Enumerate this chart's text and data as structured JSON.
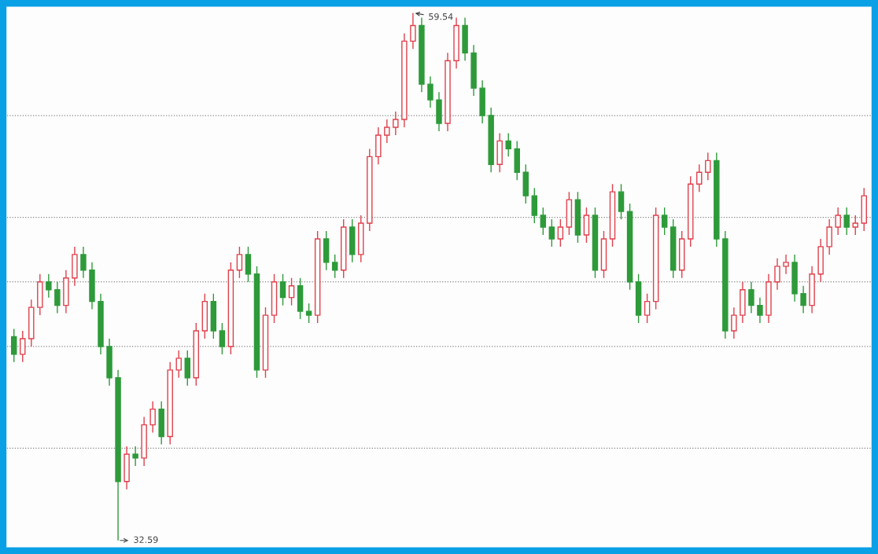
{
  "chart_data": {
    "type": "candlestick",
    "categories": [
      null,
      null,
      null,
      null,
      null,
      null,
      null,
      null,
      null,
      null,
      null,
      null,
      null,
      null,
      null,
      null,
      null,
      null,
      null,
      null,
      null,
      null,
      null,
      null,
      null,
      null,
      null,
      null,
      null,
      null,
      null,
      null,
      null,
      null,
      null,
      null,
      null,
      null,
      null,
      null,
      null,
      null,
      null,
      null,
      null,
      null,
      null,
      null,
      null,
      null,
      null,
      null,
      null,
      null,
      null,
      null,
      null,
      null,
      null,
      null,
      null,
      null,
      null,
      null,
      null,
      null,
      null,
      null,
      null,
      null,
      null,
      null,
      null,
      null,
      null,
      null,
      null,
      null,
      null,
      null,
      null,
      null,
      null,
      null,
      null,
      null,
      null,
      null,
      null,
      null,
      null,
      null,
      null,
      null,
      null,
      null,
      null,
      null,
      null
    ],
    "ohlc": [
      [
        43.0,
        43.4,
        41.7,
        42.1
      ],
      [
        42.1,
        43.3,
        41.7,
        42.9
      ],
      [
        42.9,
        44.9,
        42.5,
        44.5
      ],
      [
        44.5,
        46.2,
        44.1,
        45.8
      ],
      [
        45.8,
        46.2,
        45.0,
        45.4
      ],
      [
        45.4,
        45.8,
        44.2,
        44.6
      ],
      [
        44.6,
        46.4,
        44.2,
        46.0
      ],
      [
        46.0,
        47.6,
        45.6,
        47.2
      ],
      [
        47.2,
        47.6,
        46.0,
        46.4
      ],
      [
        46.4,
        46.8,
        44.4,
        44.8
      ],
      [
        44.8,
        45.2,
        42.1,
        42.5
      ],
      [
        42.5,
        42.9,
        40.5,
        40.9
      ],
      [
        40.9,
        41.3,
        32.59,
        35.6
      ],
      [
        35.6,
        37.4,
        35.2,
        37.0
      ],
      [
        37.0,
        37.4,
        36.4,
        36.8
      ],
      [
        36.8,
        38.9,
        36.4,
        38.5
      ],
      [
        38.5,
        39.7,
        38.1,
        39.3
      ],
      [
        39.3,
        39.7,
        37.5,
        37.9
      ],
      [
        37.9,
        41.7,
        37.5,
        41.3
      ],
      [
        41.3,
        42.3,
        40.9,
        41.9
      ],
      [
        41.9,
        42.3,
        40.5,
        40.9
      ],
      [
        40.9,
        43.7,
        40.5,
        43.3
      ],
      [
        43.3,
        45.2,
        42.9,
        44.8
      ],
      [
        44.8,
        45.2,
        42.9,
        43.3
      ],
      [
        43.3,
        43.7,
        42.1,
        42.5
      ],
      [
        42.5,
        46.8,
        42.1,
        46.4
      ],
      [
        46.4,
        47.6,
        46.0,
        47.2
      ],
      [
        47.2,
        47.6,
        45.8,
        46.2
      ],
      [
        46.2,
        46.6,
        40.9,
        41.3
      ],
      [
        41.3,
        44.5,
        40.9,
        44.1
      ],
      [
        44.1,
        46.2,
        43.7,
        45.8
      ],
      [
        45.8,
        46.2,
        44.6,
        45.0
      ],
      [
        45.0,
        46.0,
        44.6,
        45.6
      ],
      [
        45.6,
        46.0,
        43.9,
        44.3
      ],
      [
        44.3,
        44.7,
        43.7,
        44.1
      ],
      [
        44.1,
        48.4,
        43.7,
        48.0
      ],
      [
        48.0,
        48.4,
        46.4,
        46.8
      ],
      [
        46.8,
        47.2,
        46.0,
        46.4
      ],
      [
        46.4,
        49.0,
        46.0,
        48.6
      ],
      [
        48.6,
        49.0,
        46.8,
        47.2
      ],
      [
        47.2,
        49.2,
        46.8,
        48.8
      ],
      [
        48.8,
        52.6,
        48.4,
        52.2
      ],
      [
        52.2,
        53.7,
        51.8,
        53.3
      ],
      [
        53.3,
        54.1,
        52.9,
        53.7
      ],
      [
        53.7,
        54.5,
        53.3,
        54.1
      ],
      [
        54.1,
        58.5,
        53.7,
        58.1
      ],
      [
        58.1,
        59.54,
        57.7,
        58.9
      ],
      [
        58.9,
        59.3,
        55.5,
        55.9
      ],
      [
        55.9,
        56.3,
        54.7,
        55.1
      ],
      [
        55.1,
        55.5,
        53.5,
        53.9
      ],
      [
        53.9,
        57.5,
        53.5,
        57.1
      ],
      [
        57.1,
        59.3,
        56.7,
        58.9
      ],
      [
        58.9,
        59.3,
        57.1,
        57.5
      ],
      [
        57.5,
        57.9,
        55.3,
        55.7
      ],
      [
        55.7,
        56.1,
        53.9,
        54.3
      ],
      [
        54.3,
        54.7,
        51.4,
        51.8
      ],
      [
        51.8,
        53.4,
        51.4,
        53.0
      ],
      [
        53.0,
        53.4,
        52.2,
        52.6
      ],
      [
        52.6,
        53.0,
        51.0,
        51.4
      ],
      [
        51.4,
        51.8,
        49.8,
        50.2
      ],
      [
        50.2,
        50.6,
        48.8,
        49.2
      ],
      [
        49.2,
        49.6,
        48.2,
        48.6
      ],
      [
        48.6,
        49.0,
        47.6,
        48.0
      ],
      [
        48.0,
        49.0,
        47.6,
        48.6
      ],
      [
        48.6,
        50.4,
        48.2,
        50.0
      ],
      [
        50.0,
        50.4,
        47.8,
        48.2
      ],
      [
        48.2,
        49.6,
        47.8,
        49.2
      ],
      [
        49.2,
        49.6,
        46.0,
        46.4
      ],
      [
        46.4,
        48.4,
        46.0,
        48.0
      ],
      [
        48.0,
        50.8,
        47.6,
        50.4
      ],
      [
        50.4,
        50.8,
        49.0,
        49.4
      ],
      [
        49.4,
        49.8,
        45.4,
        45.8
      ],
      [
        45.8,
        46.2,
        43.7,
        44.1
      ],
      [
        44.1,
        45.2,
        43.7,
        44.8
      ],
      [
        44.8,
        49.6,
        44.4,
        49.2
      ],
      [
        49.2,
        49.6,
        48.2,
        48.6
      ],
      [
        48.6,
        49.0,
        46.0,
        46.4
      ],
      [
        46.4,
        48.4,
        46.0,
        48.0
      ],
      [
        48.0,
        51.2,
        47.6,
        50.8
      ],
      [
        50.8,
        51.8,
        50.4,
        51.4
      ],
      [
        51.4,
        52.4,
        51.0,
        52.0
      ],
      [
        52.0,
        52.4,
        47.6,
        48.0
      ],
      [
        48.0,
        48.4,
        42.9,
        43.3
      ],
      [
        43.3,
        44.5,
        42.9,
        44.1
      ],
      [
        44.1,
        45.8,
        43.7,
        45.4
      ],
      [
        45.4,
        45.8,
        44.2,
        44.6
      ],
      [
        44.6,
        45.0,
        43.7,
        44.1
      ],
      [
        44.1,
        46.2,
        43.7,
        45.8
      ],
      [
        45.8,
        47.0,
        45.4,
        46.6
      ],
      [
        46.6,
        47.2,
        46.2,
        46.8
      ],
      [
        46.8,
        47.2,
        44.8,
        45.2
      ],
      [
        45.2,
        45.6,
        44.2,
        44.6
      ],
      [
        44.6,
        46.6,
        44.2,
        46.2
      ],
      [
        46.2,
        48.0,
        45.8,
        47.6
      ],
      [
        47.6,
        49.0,
        47.2,
        48.6
      ],
      [
        48.6,
        49.6,
        48.2,
        49.2
      ],
      [
        49.2,
        49.6,
        48.2,
        48.6
      ],
      [
        48.6,
        49.2,
        48.2,
        48.8
      ],
      [
        48.8,
        50.6,
        48.4,
        50.2
      ]
    ],
    "colors": [
      "#2e9a3a",
      "#e0404c",
      "#e0404c",
      "#e0404c",
      "#2e9a3a",
      "#2e9a3a",
      "#e0404c",
      "#e0404c",
      "#2e9a3a",
      "#2e9a3a",
      "#2e9a3a",
      "#2e9a3a",
      "#2e9a3a",
      "#e0404c",
      "#2e9a3a",
      "#e0404c",
      "#e0404c",
      "#2e9a3a",
      "#e0404c",
      "#e0404c",
      "#2e9a3a",
      "#e0404c",
      "#e0404c",
      "#2e9a3a",
      "#2e9a3a",
      "#e0404c",
      "#e0404c",
      "#2e9a3a",
      "#2e9a3a",
      "#e0404c",
      "#e0404c",
      "#2e9a3a",
      "#e0404c",
      "#2e9a3a",
      "#2e9a3a",
      "#e0404c",
      "#2e9a3a",
      "#2e9a3a",
      "#e0404c",
      "#2e9a3a",
      "#e0404c",
      "#e0404c",
      "#e0404c",
      "#e0404c",
      "#e0404c",
      "#e0404c",
      "#e0404c",
      "#2e9a3a",
      "#2e9a3a",
      "#2e9a3a",
      "#e0404c",
      "#e0404c",
      "#2e9a3a",
      "#2e9a3a",
      "#2e9a3a",
      "#2e9a3a",
      "#e0404c",
      "#2e9a3a",
      "#2e9a3a",
      "#2e9a3a",
      "#2e9a3a",
      "#2e9a3a",
      "#2e9a3a",
      "#e0404c",
      "#e0404c",
      "#2e9a3a",
      "#e0404c",
      "#2e9a3a",
      "#e0404c",
      "#e0404c",
      "#2e9a3a",
      "#2e9a3a",
      "#2e9a3a",
      "#e0404c",
      "#e0404c",
      "#2e9a3a",
      "#2e9a3a",
      "#e0404c",
      "#e0404c",
      "#e0404c",
      "#e0404c",
      "#2e9a3a",
      "#2e9a3a",
      "#e0404c",
      "#e0404c",
      "#2e9a3a",
      "#2e9a3a",
      "#e0404c",
      "#e0404c",
      "#e0404c",
      "#2e9a3a",
      "#2e9a3a",
      "#e0404c",
      "#e0404c",
      "#e0404c",
      "#e0404c",
      "#2e9a3a",
      "#e0404c",
      "#e0404c"
    ],
    "annotations": [
      "59.54",
      "32.59"
    ],
    "ref_lines": [
      {
        "axis": "y",
        "value": 54.3,
        "color": "#888888",
        "line_style": "dotted"
      },
      {
        "axis": "y",
        "value": 49.1,
        "color": "#888888",
        "line_style": "dotted"
      },
      {
        "axis": "y",
        "value": 45.8,
        "color": "#888888",
        "line_style": "dotted"
      },
      {
        "axis": "y",
        "value": 42.5,
        "color": "#888888",
        "line_style": "dotted"
      },
      {
        "axis": "y",
        "value": 37.3,
        "color": "#888888",
        "line_style": "dotted"
      }
    ]
  }
}
